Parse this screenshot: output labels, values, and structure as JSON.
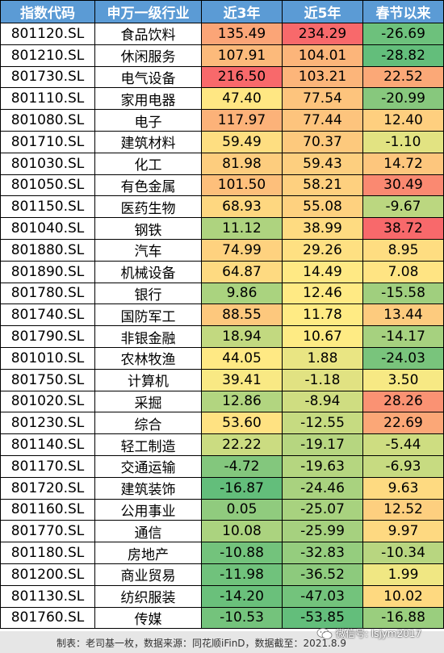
{
  "table": {
    "headers": [
      "指数代码",
      "申万一级行业",
      "近3年",
      "近5年",
      "春节以来"
    ],
    "rows": [
      {
        "code": "801120.SL",
        "name": "食品饮料",
        "y3": "135.49",
        "y5": "234.29",
        "sf": "-26.69"
      },
      {
        "code": "801210.SL",
        "name": "休闲服务",
        "y3": "107.91",
        "y5": "104.01",
        "sf": "-28.82"
      },
      {
        "code": "801730.SL",
        "name": "电气设备",
        "y3": "216.50",
        "y5": "103.21",
        "sf": "22.52"
      },
      {
        "code": "801110.SL",
        "name": "家用电器",
        "y3": "47.40",
        "y5": "77.54",
        "sf": "-20.99"
      },
      {
        "code": "801080.SL",
        "name": "电子",
        "y3": "117.97",
        "y5": "77.44",
        "sf": "12.40"
      },
      {
        "code": "801710.SL",
        "name": "建筑材料",
        "y3": "59.49",
        "y5": "70.37",
        "sf": "-1.10"
      },
      {
        "code": "801030.SL",
        "name": "化工",
        "y3": "81.98",
        "y5": "59.43",
        "sf": "14.72"
      },
      {
        "code": "801050.SL",
        "name": "有色金属",
        "y3": "101.50",
        "y5": "58.21",
        "sf": "30.49"
      },
      {
        "code": "801150.SL",
        "name": "医药生物",
        "y3": "68.93",
        "y5": "55.08",
        "sf": "-9.67"
      },
      {
        "code": "801040.SL",
        "name": "钢铁",
        "y3": "11.12",
        "y5": "38.99",
        "sf": "38.72"
      },
      {
        "code": "801880.SL",
        "name": "汽车",
        "y3": "74.99",
        "y5": "29.26",
        "sf": "8.95"
      },
      {
        "code": "801890.SL",
        "name": "机械设备",
        "y3": "64.87",
        "y5": "14.49",
        "sf": "7.08"
      },
      {
        "code": "801780.SL",
        "name": "银行",
        "y3": "9.86",
        "y5": "12.46",
        "sf": "-15.58"
      },
      {
        "code": "801740.SL",
        "name": "国防军工",
        "y3": "88.55",
        "y5": "11.78",
        "sf": "13.44"
      },
      {
        "code": "801790.SL",
        "name": "非银金融",
        "y3": "18.94",
        "y5": "10.67",
        "sf": "-14.17"
      },
      {
        "code": "801010.SL",
        "name": "农林牧渔",
        "y3": "44.05",
        "y5": "1.88",
        "sf": "-24.03"
      },
      {
        "code": "801750.SL",
        "name": "计算机",
        "y3": "39.41",
        "y5": "-1.18",
        "sf": "3.50"
      },
      {
        "code": "801020.SL",
        "name": "采掘",
        "y3": "12.86",
        "y5": "-8.94",
        "sf": "28.26"
      },
      {
        "code": "801230.SL",
        "name": "综合",
        "y3": "53.60",
        "y5": "-12.55",
        "sf": "22.69"
      },
      {
        "code": "801140.SL",
        "name": "轻工制造",
        "y3": "22.22",
        "y5": "-19.17",
        "sf": "-5.44"
      },
      {
        "code": "801170.SL",
        "name": "交通运输",
        "y3": "-4.72",
        "y5": "-19.63",
        "sf": "-6.93"
      },
      {
        "code": "801720.SL",
        "name": "建筑装饰",
        "y3": "-16.87",
        "y5": "-24.46",
        "sf": "9.63"
      },
      {
        "code": "801160.SL",
        "name": "公用事业",
        "y3": "0.05",
        "y5": "-25.07",
        "sf": "12.52"
      },
      {
        "code": "801770.SL",
        "name": "通信",
        "y3": "10.08",
        "y5": "-25.99",
        "sf": "9.97"
      },
      {
        "code": "801180.SL",
        "name": "房地产",
        "y3": "-10.88",
        "y5": "-32.83",
        "sf": "-10.34"
      },
      {
        "code": "801200.SL",
        "name": "商业贸易",
        "y3": "-11.98",
        "y5": "-36.52",
        "sf": "1.99"
      },
      {
        "code": "801130.SL",
        "name": "纺织服装",
        "y3": "-14.20",
        "y5": "-47.03",
        "sf": "10.02"
      },
      {
        "code": "801760.SL",
        "name": "传媒",
        "y3": "-10.53",
        "y5": "-53.85",
        "sf": "-16.88"
      }
    ]
  },
  "colors": {
    "header_bg": "#5b9bd5",
    "scale_high": "#f8696b",
    "scale_mid": "#ffeb84",
    "scale_low": "#63be7b"
  },
  "footer": {
    "note": "制表：老司基一枚，数据来源：同花顺iFinD，数据截至：2021.8.9"
  },
  "watermark": {
    "text": "微信号: lsjym2017",
    "icon": "wechat-icon"
  }
}
